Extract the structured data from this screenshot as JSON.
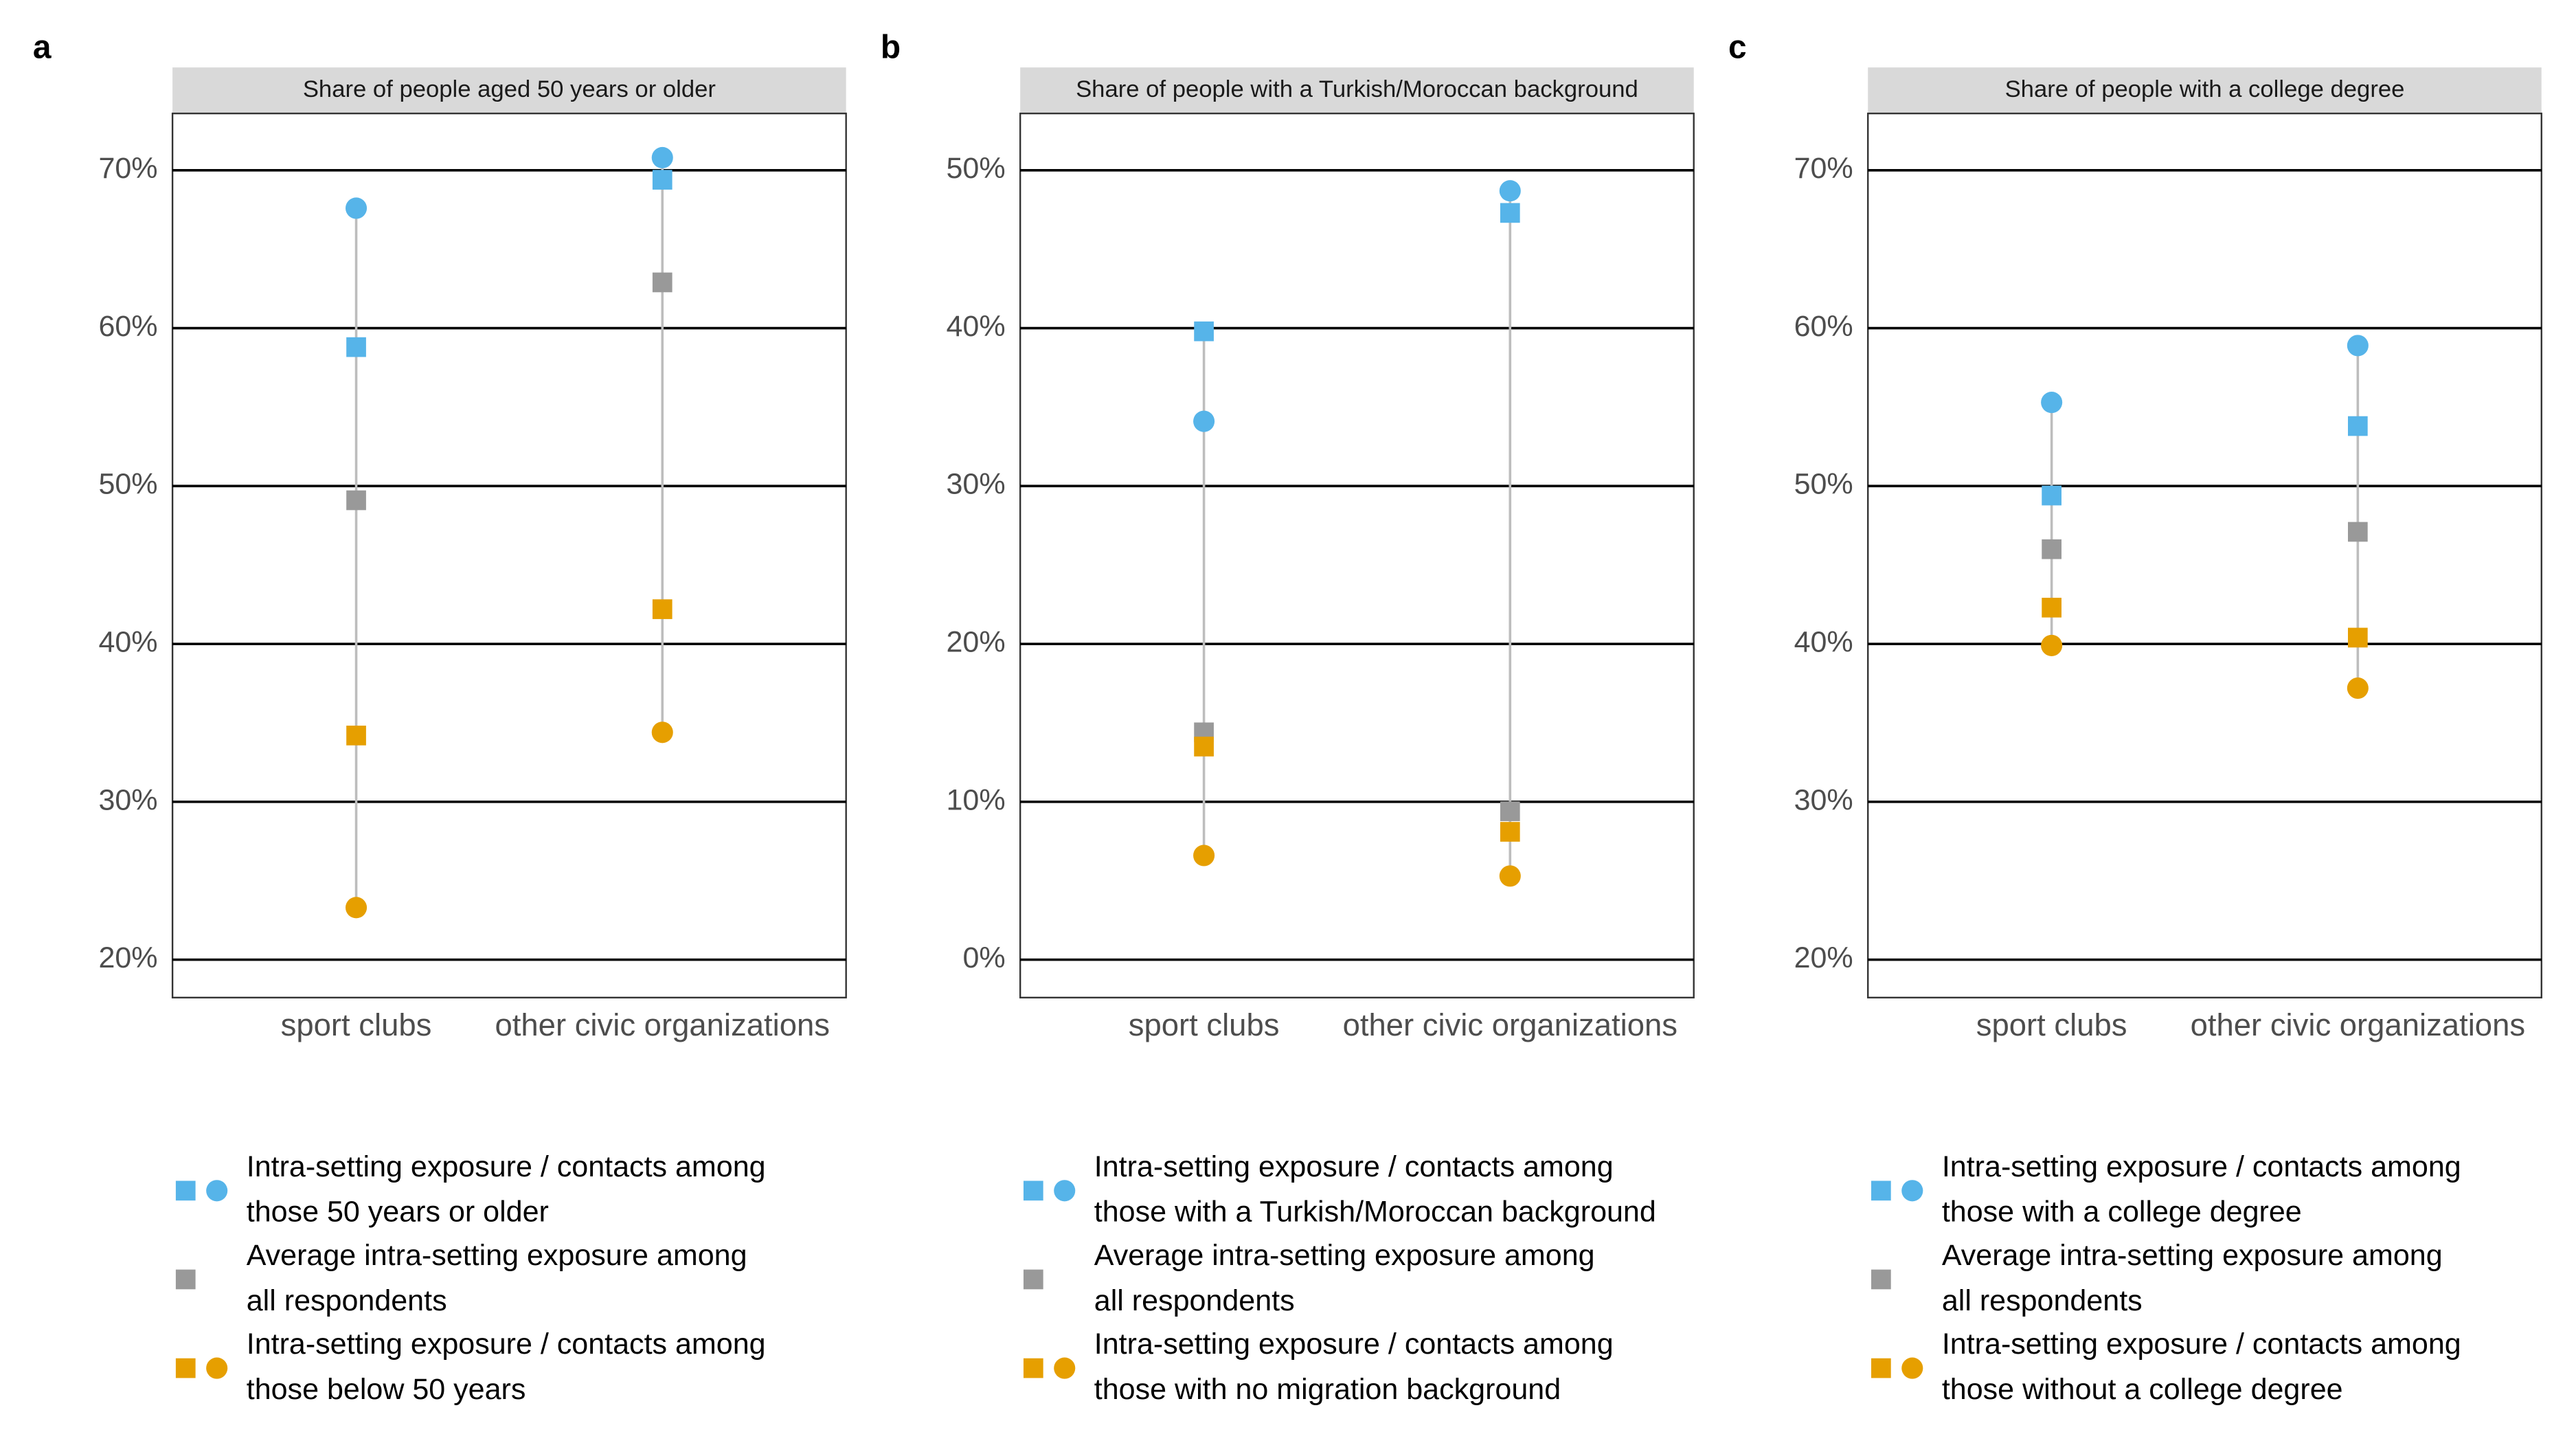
{
  "chart_data": [
    {
      "type": "dot",
      "panel_label": "a",
      "title": "Share of people aged 50 years or older",
      "categories": [
        "sport clubs",
        "other civic organizations"
      ],
      "series": [
        {
          "color": "#56b4e9",
          "shape": "circle",
          "values": [
            67.6,
            70.8
          ]
        },
        {
          "color": "#56b4e9",
          "shape": "square",
          "values": [
            58.8,
            69.4
          ]
        },
        {
          "color": "#999999",
          "shape": "square",
          "values": [
            49.1,
            62.9
          ]
        },
        {
          "color": "#e69f00",
          "shape": "square",
          "values": [
            34.2,
            42.2
          ]
        },
        {
          "color": "#e69f00",
          "shape": "circle",
          "values": [
            23.3,
            34.4
          ]
        }
      ],
      "ylim": [
        17.6,
        73.6
      ],
      "yticks": [
        {
          "value": 20,
          "label": "20%"
        },
        {
          "value": 30,
          "label": "30%"
        },
        {
          "value": 40,
          "label": "40%"
        },
        {
          "value": 50,
          "label": "50%"
        },
        {
          "value": 60,
          "label": "60%"
        },
        {
          "value": 70,
          "label": "70%"
        }
      ],
      "grid": true,
      "legend": [
        {
          "lines": [
            "Intra-setting exposure / contacts among",
            "those 50 years or older"
          ],
          "color": "#56b4e9",
          "markers": [
            "square",
            "circle"
          ]
        },
        {
          "lines": [
            "Average intra-setting exposure among",
            "all respondents"
          ],
          "color": "#999999",
          "markers": [
            "square"
          ]
        },
        {
          "lines": [
            "Intra-setting exposure / contacts among",
            "those below 50 years"
          ],
          "color": "#e69f00",
          "markers": [
            "square",
            "circle"
          ]
        }
      ]
    },
    {
      "type": "dot",
      "panel_label": "b",
      "title": "Share of people with a Turkish/Moroccan background",
      "categories": [
        "sport clubs",
        "other civic organizations"
      ],
      "series": [
        {
          "color": "#56b4e9",
          "shape": "circle",
          "values": [
            34.1,
            48.7
          ]
        },
        {
          "color": "#56b4e9",
          "shape": "square",
          "values": [
            39.8,
            47.3
          ]
        },
        {
          "color": "#999999",
          "shape": "square",
          "values": [
            14.4,
            9.4
          ]
        },
        {
          "color": "#e69f00",
          "shape": "square",
          "values": [
            13.5,
            8.1
          ]
        },
        {
          "color": "#e69f00",
          "shape": "circle",
          "values": [
            6.6,
            5.3
          ]
        }
      ],
      "ylim": [
        -2.4,
        53.6
      ],
      "yticks": [
        {
          "value": 0,
          "label": "0%"
        },
        {
          "value": 10,
          "label": "10%"
        },
        {
          "value": 20,
          "label": "20%"
        },
        {
          "value": 30,
          "label": "30%"
        },
        {
          "value": 40,
          "label": "40%"
        },
        {
          "value": 50,
          "label": "50%"
        }
      ],
      "grid": true,
      "legend": [
        {
          "lines": [
            "Intra-setting exposure / contacts among",
            "those with a Turkish/Moroccan background"
          ],
          "color": "#56b4e9",
          "markers": [
            "square",
            "circle"
          ]
        },
        {
          "lines": [
            "Average intra-setting exposure among",
            "all respondents"
          ],
          "color": "#999999",
          "markers": [
            "square"
          ]
        },
        {
          "lines": [
            "Intra-setting exposure / contacts among",
            "those with no migration background"
          ],
          "color": "#e69f00",
          "markers": [
            "square",
            "circle"
          ]
        }
      ]
    },
    {
      "type": "dot",
      "panel_label": "c",
      "title": "Share of people with a college degree",
      "categories": [
        "sport clubs",
        "other civic organizations"
      ],
      "series": [
        {
          "color": "#56b4e9",
          "shape": "circle",
          "values": [
            55.3,
            58.9
          ]
        },
        {
          "color": "#56b4e9",
          "shape": "square",
          "values": [
            49.4,
            53.8
          ]
        },
        {
          "color": "#999999",
          "shape": "square",
          "values": [
            46.0,
            47.1
          ]
        },
        {
          "color": "#e69f00",
          "shape": "square",
          "values": [
            42.3,
            40.4
          ]
        },
        {
          "color": "#e69f00",
          "shape": "circle",
          "values": [
            39.9,
            37.2
          ]
        }
      ],
      "ylim": [
        17.6,
        73.6
      ],
      "yticks": [
        {
          "value": 20,
          "label": "20%"
        },
        {
          "value": 30,
          "label": "30%"
        },
        {
          "value": 40,
          "label": "40%"
        },
        {
          "value": 50,
          "label": "50%"
        },
        {
          "value": 60,
          "label": "60%"
        },
        {
          "value": 70,
          "label": "70%"
        }
      ],
      "grid": true,
      "legend": [
        {
          "lines": [
            "Intra-setting exposure / contacts among",
            "those with a college degree"
          ],
          "color": "#56b4e9",
          "markers": [
            "square",
            "circle"
          ]
        },
        {
          "lines": [
            "Average intra-setting exposure among",
            "all respondents"
          ],
          "color": "#999999",
          "markers": [
            "square"
          ]
        },
        {
          "lines": [
            "Intra-setting exposure / contacts among",
            "those without a college degree"
          ],
          "color": "#e69f00",
          "markers": [
            "square",
            "circle"
          ]
        }
      ]
    }
  ]
}
